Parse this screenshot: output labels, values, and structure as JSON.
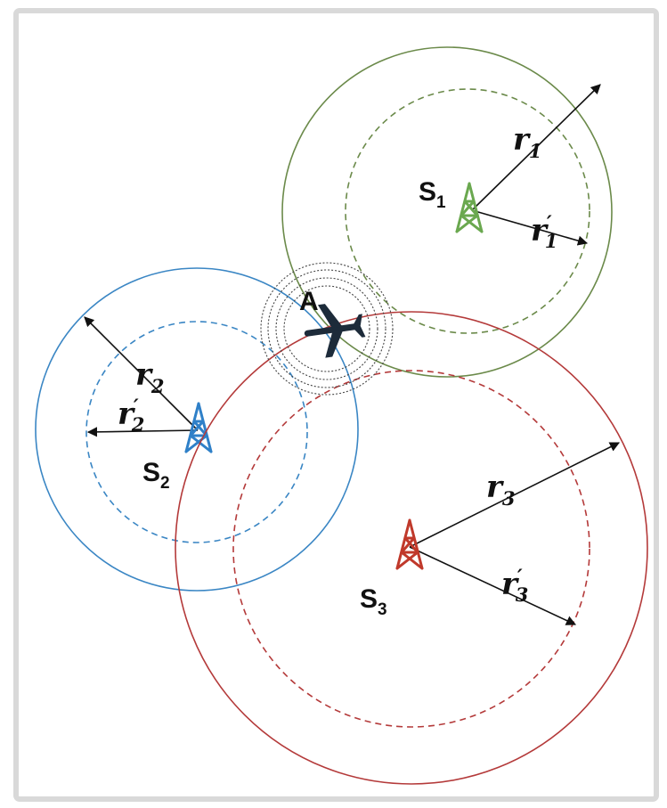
{
  "colors": {
    "s1": "#6b8a4a",
    "s1_tower": "#6aa84f",
    "s2": "#3a86c4",
    "s2_tower": "#2f80c8",
    "s3": "#b43a3a",
    "s3_tower": "#c0392b",
    "ring": "#444444",
    "arrow": "#111111",
    "aircraft": "#1d2b3a"
  },
  "icons": {
    "station": "radio-tower-icon",
    "aircraft": "airplane-icon"
  },
  "labels": {
    "aircraft": "A",
    "s1": {
      "letter": "S",
      "sub": "1"
    },
    "s2": {
      "letter": "S",
      "sub": "2"
    },
    "s3": {
      "letter": "S",
      "sub": "3"
    },
    "r1": {
      "letter": "r",
      "sub": "1",
      "prime": ""
    },
    "r1p": {
      "letter": "r",
      "sub": "1",
      "prime": "′"
    },
    "r2": {
      "letter": "r",
      "sub": "2",
      "prime": ""
    },
    "r2p": {
      "letter": "r",
      "sub": "2",
      "prime": "′"
    },
    "r3": {
      "letter": "r",
      "sub": "3",
      "prime": ""
    },
    "r3p": {
      "letter": "r",
      "sub": "3",
      "prime": "′"
    }
  }
}
